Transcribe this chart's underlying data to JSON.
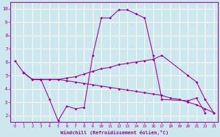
{
  "xlabel": "Windchill (Refroidissement éolien,°C)",
  "bg_color": "#cce8ee",
  "line_color": "#990099",
  "grid_color": "#ffffff",
  "xlim": [
    -0.5,
    23.5
  ],
  "ylim": [
    1.5,
    10.5
  ],
  "xticks": [
    0,
    1,
    2,
    3,
    4,
    5,
    6,
    7,
    8,
    9,
    10,
    11,
    12,
    13,
    14,
    15,
    16,
    17,
    18,
    19,
    20,
    21,
    22,
    23
  ],
  "yticks": [
    2,
    3,
    4,
    5,
    6,
    7,
    8,
    9,
    10
  ],
  "line1_x": [
    0,
    1,
    2,
    3,
    4,
    5,
    6,
    7,
    8,
    9,
    10,
    11,
    12,
    13,
    14,
    15,
    16,
    17,
    20,
    21,
    22
  ],
  "line1_y": [
    6.1,
    5.2,
    4.7,
    4.7,
    3.2,
    1.6,
    2.7,
    2.5,
    2.6,
    6.5,
    9.3,
    9.3,
    9.9,
    9.9,
    9.6,
    9.3,
    6.5,
    3.2,
    3.1,
    3.3,
    2.2
  ],
  "line2_x": [
    1,
    2,
    3,
    4,
    5,
    6,
    7,
    8,
    9,
    10,
    11,
    12,
    13,
    14,
    15,
    16,
    17,
    20,
    21,
    22,
    23
  ],
  "line2_y": [
    5.2,
    4.7,
    4.7,
    4.7,
    4.7,
    4.8,
    4.9,
    5.1,
    5.3,
    5.5,
    5.6,
    5.8,
    5.9,
    6.0,
    6.1,
    6.2,
    6.5,
    5.0,
    4.5,
    3.2,
    2.2
  ],
  "line3_x": [
    1,
    2,
    3,
    4,
    5,
    6,
    7,
    8,
    9,
    10,
    11,
    12,
    13,
    14,
    15,
    16,
    17,
    18,
    19,
    20,
    21,
    22,
    23
  ],
  "line3_y": [
    5.2,
    4.7,
    4.7,
    4.7,
    4.7,
    4.6,
    4.5,
    4.4,
    4.3,
    4.2,
    4.1,
    4.0,
    3.9,
    3.8,
    3.7,
    3.6,
    3.5,
    3.3,
    3.2,
    3.0,
    2.8,
    2.5,
    2.2
  ]
}
